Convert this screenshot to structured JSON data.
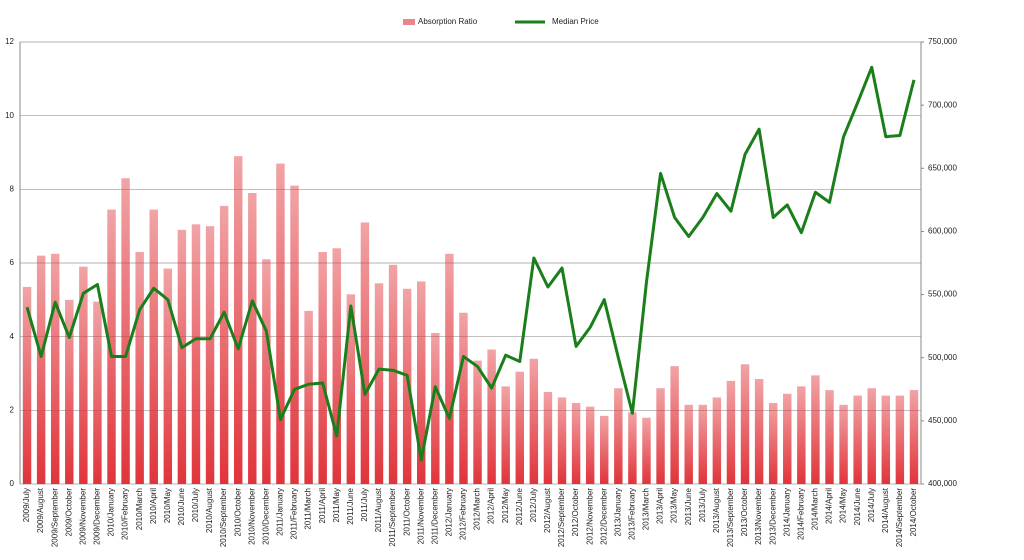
{
  "chart_data": {
    "type": "combo",
    "categories": [
      "2009/July",
      "2009/August",
      "2009/September",
      "2009/October",
      "2009/November",
      "2009/December",
      "2010/January",
      "2010/February",
      "2010/March",
      "2010/April",
      "2010/May",
      "2010/June",
      "2010/July",
      "2010/August",
      "2010/September",
      "2010/October",
      "2010/November",
      "2010/December",
      "2011/January",
      "2011/February",
      "2011/March",
      "2011/April",
      "2011/May",
      "2011/June",
      "2011/July",
      "2011/August",
      "2011/September",
      "2011/October",
      "2011/November",
      "2011/December",
      "2012/January",
      "2012/February",
      "2012/March",
      "2012/April",
      "2012/May",
      "2012/June",
      "2012/July",
      "2012/August",
      "2012/September",
      "2012/October",
      "2012/November",
      "2012/December",
      "2013/January",
      "2013/February",
      "2013/March",
      "2013/April",
      "2013/May",
      "2013/June",
      "2013/July",
      "2013/August",
      "2013/September",
      "2013/October",
      "2013/November",
      "2013/December",
      "2014/January",
      "2014/February",
      "2014/March",
      "2014/April",
      "2014/May",
      "2014/June",
      "2014/July",
      "2014/August",
      "2014/September",
      "2014/October"
    ],
    "series": [
      {
        "name": "Absorption Ratio",
        "type": "bar",
        "color": "#e0343a",
        "values": [
          5.35,
          6.2,
          6.25,
          5.0,
          5.9,
          4.95,
          7.45,
          8.3,
          6.3,
          7.45,
          5.85,
          6.9,
          7.05,
          7.0,
          7.55,
          8.9,
          7.9,
          6.1,
          8.7,
          8.1,
          4.7,
          6.3,
          6.4,
          5.15,
          7.1,
          5.45,
          5.95,
          5.3,
          5.5,
          4.1,
          6.25,
          4.65,
          3.35,
          3.65,
          2.65,
          3.05,
          3.4,
          2.5,
          2.35,
          2.2,
          2.1,
          1.85,
          2.6,
          1.95,
          1.8,
          2.6,
          3.2,
          2.15,
          2.15,
          2.35,
          2.8,
          3.25,
          2.85,
          2.2,
          2.45,
          2.65,
          2.95,
          2.55,
          2.15,
          2.4,
          2.6,
          2.4,
          2.4,
          2.55
        ]
      },
      {
        "name": "Median Price",
        "type": "line",
        "axis": "y2",
        "color": "#1a7f1a",
        "values": [
          540000,
          501000,
          544000,
          516000,
          551000,
          558000,
          501000,
          501000,
          538000,
          555000,
          546000,
          508000,
          515000,
          515000,
          536000,
          507000,
          545000,
          521000,
          451000,
          475000,
          479000,
          480000,
          438000,
          541000,
          471000,
          491000,
          490000,
          486000,
          419000,
          477000,
          452000,
          501000,
          493000,
          476000,
          502000,
          497000,
          579000,
          556000,
          571000,
          509000,
          524000,
          546000,
          500000,
          456000,
          560000,
          646000,
          611000,
          596000,
          611000,
          630000,
          616000,
          661000,
          681000,
          611000,
          621000,
          599000,
          631000,
          623000,
          675000,
          702000,
          730000,
          675000,
          676000,
          720000
        ]
      }
    ],
    "ylim": [
      0,
      12
    ],
    "yticks": [
      0,
      2,
      4,
      6,
      8,
      10,
      12
    ],
    "y2lim": [
      400000,
      750000
    ],
    "y2ticks": [
      {
        "value": 400000,
        "label": "400,000"
      },
      {
        "value": 450000,
        "label": "450,000"
      },
      {
        "value": 500000,
        "label": "500,000"
      },
      {
        "value": 550000,
        "label": "550,000"
      },
      {
        "value": 600000,
        "label": "600,000"
      },
      {
        "value": 650000,
        "label": "650,000"
      },
      {
        "value": 700000,
        "label": "700,000"
      },
      {
        "value": 750000,
        "label": "750,000"
      }
    ],
    "grid": true,
    "legend": "top"
  }
}
